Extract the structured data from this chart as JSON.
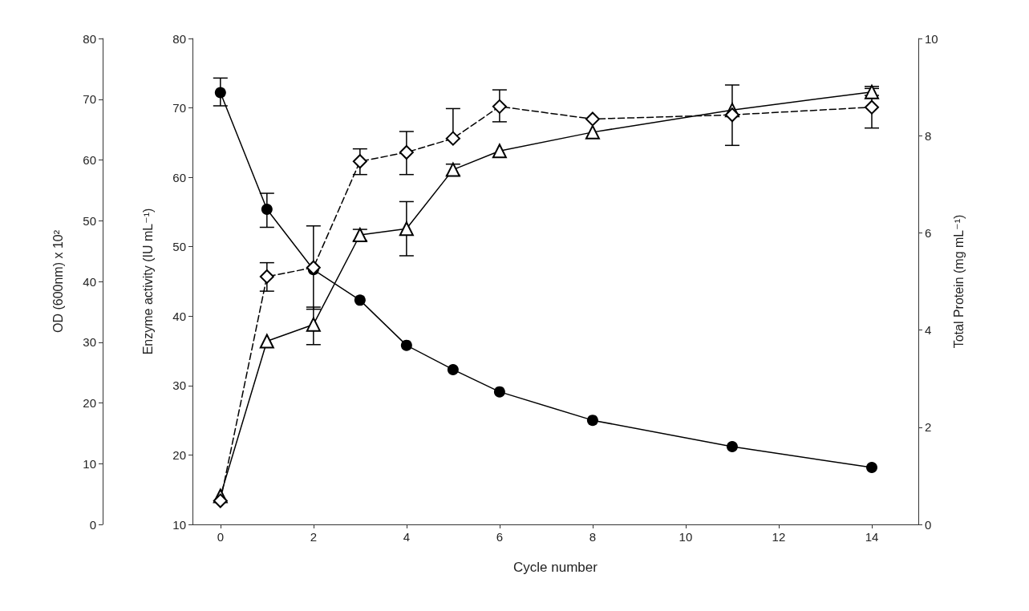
{
  "chart_data": {
    "type": "line",
    "xlabel": "Cycle number",
    "ylabel": "Enzyme activity (IU mL⁻¹)",
    "y2label": "Total Protein (mg mL⁻¹)",
    "y3label": "OD (600nm) x 10²",
    "x": [
      0,
      1,
      2,
      3,
      4,
      5,
      6,
      8,
      11,
      14
    ],
    "xlim": [
      -0.6,
      15
    ],
    "xticks": [
      0,
      2,
      4,
      6,
      8,
      10,
      12,
      14
    ],
    "ylim": [
      10,
      80
    ],
    "yticks": [
      10,
      20,
      30,
      40,
      50,
      60,
      70,
      80
    ],
    "y2lim": [
      0,
      10
    ],
    "y2ticks": [
      0,
      2,
      4,
      6,
      8,
      10
    ],
    "y3lim": [
      0,
      80
    ],
    "y3ticks": [
      0,
      10,
      20,
      30,
      40,
      50,
      60,
      70,
      80
    ],
    "series": [
      {
        "color": "#000000",
        "marker": "circle",
        "line_style": "solid",
        "values": [
          72.2,
          55.4,
          46.7,
          42.3,
          35.8,
          32.3,
          29.1,
          25.0,
          21.2,
          18.2
        ],
        "errors": [
          [
            70.3,
            74.3
          ],
          [
            52.8,
            57.7
          ],
          null,
          null,
          null,
          null,
          null,
          null,
          null,
          null
        ]
      },
      {
        "color": "#000000",
        "marker": "triangle",
        "line_style": "solid",
        "values": [
          14.1,
          36.4,
          38.8,
          51.7,
          52.6,
          61.1,
          63.8,
          66.5,
          69.7,
          72.3
        ],
        "errors": [
          null,
          null,
          [
            35.9,
            41.3
          ],
          0.8,
          [
            48.7,
            56.5
          ],
          0.8,
          null,
          null,
          null,
          0.5
        ]
      },
      {
        "color": "#000000",
        "marker": "diamond",
        "line_style": "dashed",
        "values": [
          13.4,
          45.7,
          47.0,
          62.3,
          63.6,
          65.6,
          70.2,
          68.4,
          69.0,
          70.1
        ],
        "errors": [
          null,
          [
            43.6,
            47.7
          ],
          [
            41.0,
            53.0
          ],
          [
            60.4,
            64.1
          ],
          [
            60.4,
            66.6
          ],
          [
            65.6,
            69.9
          ],
          [
            68.0,
            72.6
          ],
          null,
          [
            64.6,
            73.3
          ],
          3.0
        ]
      }
    ]
  }
}
